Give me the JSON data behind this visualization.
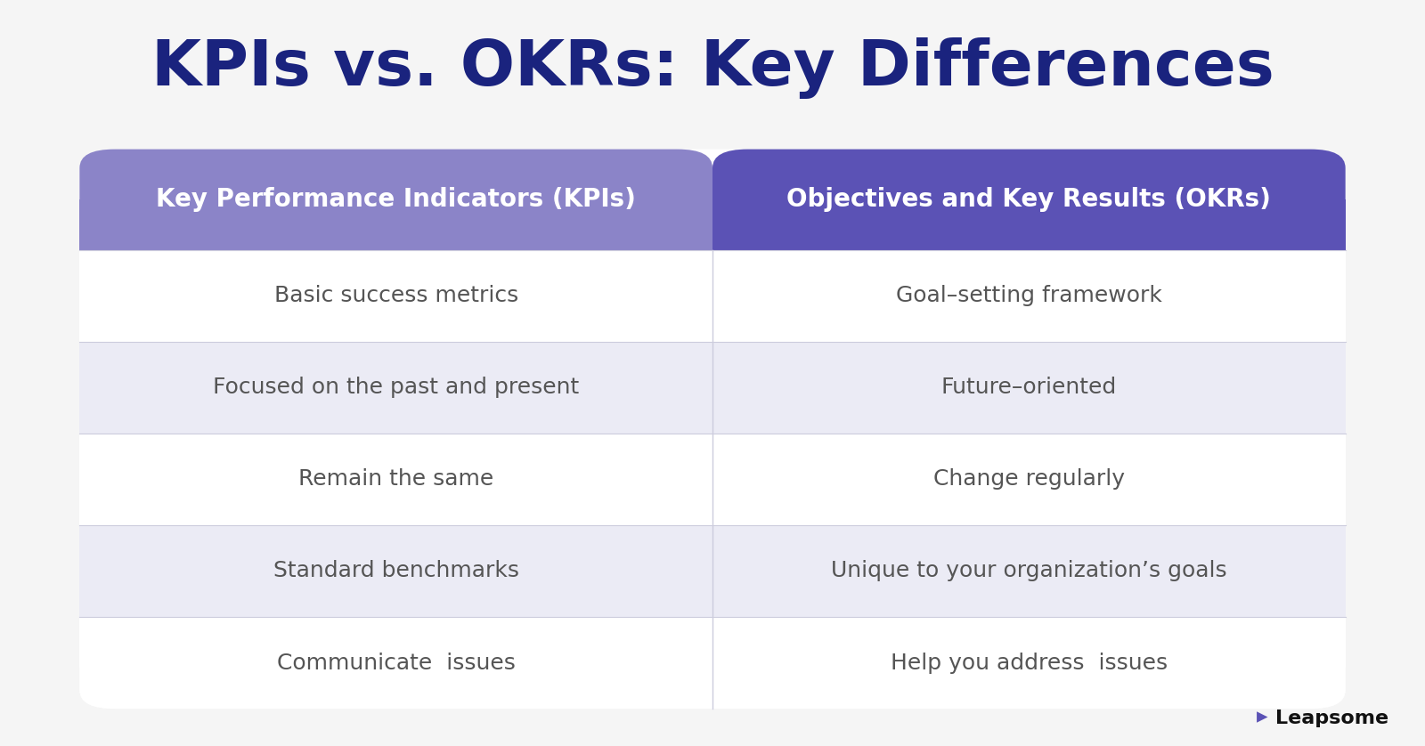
{
  "title": "KPIs vs. OKRs: Key Differences",
  "title_color": "#1a237e",
  "title_fontsize": 52,
  "background_color": "#f5f5f5",
  "col1_header": "Key Performance Indicators (KPIs)",
  "col2_header": "Objectives and Key Results (OKRs)",
  "header_bg_left": "#8b84c8",
  "header_bg_right": "#5b52b5",
  "header_text_color": "#ffffff",
  "header_fontsize": 20,
  "rows": [
    [
      "Basic success metrics",
      "Goal–setting framework"
    ],
    [
      "Focused on the past and present",
      "Future–oriented"
    ],
    [
      "Remain the same",
      "Change regularly"
    ],
    [
      "Standard benchmarks",
      "Unique to your organization’s goals"
    ],
    [
      "Communicate  issues",
      "Help you address  issues"
    ]
  ],
  "row_bg_odd": "#ffffff",
  "row_bg_even": "#ebebf5",
  "row_text_color": "#555555",
  "row_fontsize": 18,
  "divider_color": "#ccccdd",
  "logo_text": "Leapsome",
  "logo_color": "#111111",
  "logo_fontsize": 16,
  "logo_icon_color": "#5b52b5"
}
